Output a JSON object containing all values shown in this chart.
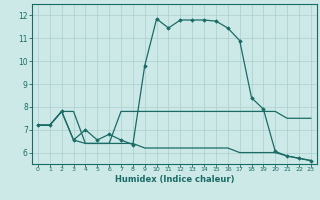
{
  "title": "",
  "xlabel": "Humidex (Indice chaleur)",
  "xlim": [
    -0.5,
    23.5
  ],
  "ylim": [
    5.5,
    12.5
  ],
  "yticks": [
    6,
    7,
    8,
    9,
    10,
    11,
    12
  ],
  "xticks": [
    0,
    1,
    2,
    3,
    4,
    5,
    6,
    7,
    8,
    9,
    10,
    11,
    12,
    13,
    14,
    15,
    16,
    17,
    18,
    19,
    20,
    21,
    22,
    23
  ],
  "bg_color": "#cce9e8",
  "grid_color": "#aacfce",
  "line_color": "#1a6b65",
  "line1_x": [
    0,
    1,
    2,
    3,
    4,
    5,
    6,
    7,
    8,
    9,
    10,
    11,
    12,
    13,
    14,
    15,
    16,
    17,
    18,
    19,
    20,
    21,
    22,
    23
  ],
  "line1_y": [
    7.2,
    7.2,
    7.8,
    6.55,
    7.0,
    6.55,
    6.8,
    6.55,
    6.35,
    9.8,
    11.85,
    11.45,
    11.8,
    11.8,
    11.8,
    11.75,
    11.45,
    10.9,
    8.4,
    7.9,
    6.05,
    5.85,
    5.75,
    5.65
  ],
  "line2_x": [
    0,
    1,
    2,
    3,
    4,
    5,
    6,
    7,
    8,
    9,
    10,
    11,
    12,
    13,
    14,
    15,
    16,
    17,
    18,
    19,
    20,
    21,
    22,
    23
  ],
  "line2_y": [
    7.2,
    7.2,
    7.8,
    7.8,
    6.4,
    6.4,
    6.4,
    7.8,
    7.8,
    7.8,
    7.8,
    7.8,
    7.8,
    7.8,
    7.8,
    7.8,
    7.8,
    7.8,
    7.8,
    7.8,
    7.8,
    7.5,
    7.5,
    7.5
  ],
  "line3_x": [
    0,
    1,
    2,
    3,
    4,
    5,
    6,
    7,
    8,
    9,
    10,
    11,
    12,
    13,
    14,
    15,
    16,
    17,
    18,
    19,
    20,
    21,
    22,
    23
  ],
  "line3_y": [
    7.2,
    7.2,
    7.8,
    6.55,
    6.4,
    6.4,
    6.4,
    6.4,
    6.4,
    6.2,
    6.2,
    6.2,
    6.2,
    6.2,
    6.2,
    6.2,
    6.2,
    6.0,
    6.0,
    6.0,
    6.0,
    5.85,
    5.75,
    5.65
  ]
}
